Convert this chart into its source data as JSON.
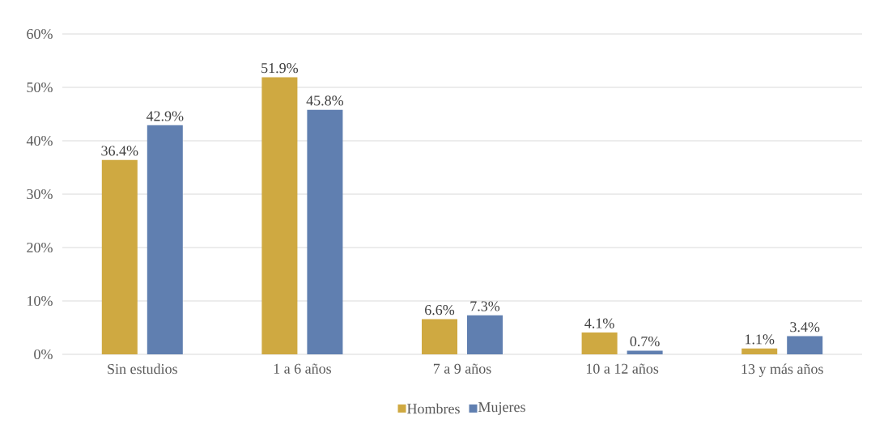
{
  "chart_data": {
    "type": "bar",
    "categories": [
      "Sin estudios",
      "1 a 6 años",
      "7 a 9 años",
      "10 a 12 años",
      "13 y más años"
    ],
    "series": [
      {
        "name": "Hombres",
        "color": "#cfa941",
        "values": [
          36.4,
          51.9,
          6.6,
          4.1,
          1.1
        ],
        "value_labels": [
          "36.4%",
          "51.9%",
          "6.6%",
          "4.1%",
          "1.1%"
        ]
      },
      {
        "name": "Mujeres",
        "color": "#607fb0",
        "values": [
          42.9,
          45.8,
          7.3,
          0.7,
          3.4
        ],
        "value_labels": [
          "42.9%",
          "45.8%",
          "7.3%",
          "0.7%",
          "3.4%"
        ]
      }
    ],
    "ylim": [
      0,
      60
    ],
    "yticks": [
      {
        "value": 0,
        "label": "0%"
      },
      {
        "value": 10,
        "label": "10%"
      },
      {
        "value": 20,
        "label": "20%"
      },
      {
        "value": 30,
        "label": "30%"
      },
      {
        "value": 40,
        "label": "40%"
      },
      {
        "value": 50,
        "label": "50%"
      },
      {
        "value": 60,
        "label": "60%"
      }
    ],
    "grid": "y",
    "legend": "bottom"
  }
}
